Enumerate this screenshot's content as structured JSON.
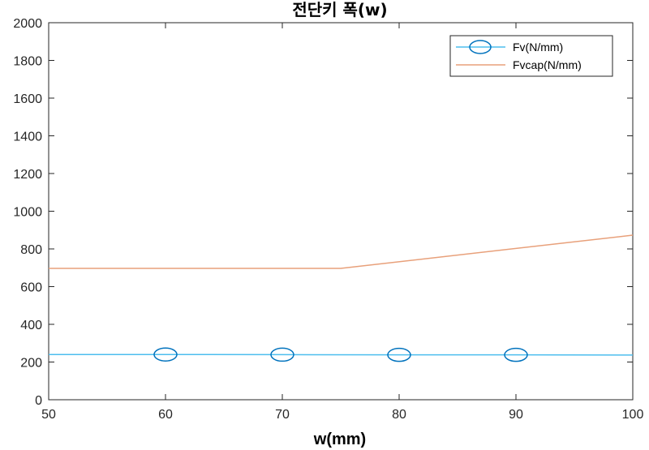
{
  "chart_data": {
    "type": "line",
    "title": "전단키 폭(w)",
    "xlabel": "w(mm)",
    "ylabel": "",
    "xlim": [
      50,
      100
    ],
    "ylim": [
      0,
      2000
    ],
    "xticks": [
      50,
      60,
      70,
      80,
      90,
      100
    ],
    "yticks": [
      0,
      200,
      400,
      600,
      800,
      1000,
      1200,
      1400,
      1600,
      1800,
      2000
    ],
    "grid": false,
    "legend_position": "top-right",
    "series": [
      {
        "name": "Fv(N/mm)",
        "color": "#0072BD",
        "line_color": "#4DBEEE",
        "marker": "circle",
        "x": [
          50,
          60,
          70,
          80,
          90,
          100
        ],
        "y": [
          240,
          240,
          239,
          238,
          238,
          237
        ],
        "marker_x": [
          60,
          70,
          80,
          90
        ]
      },
      {
        "name": "Fvcap(N/mm)",
        "color": "#D95319",
        "line_color": "#E8A07A",
        "marker": "none",
        "x": [
          50,
          75,
          100
        ],
        "y": [
          697,
          697,
          873
        ]
      }
    ]
  }
}
